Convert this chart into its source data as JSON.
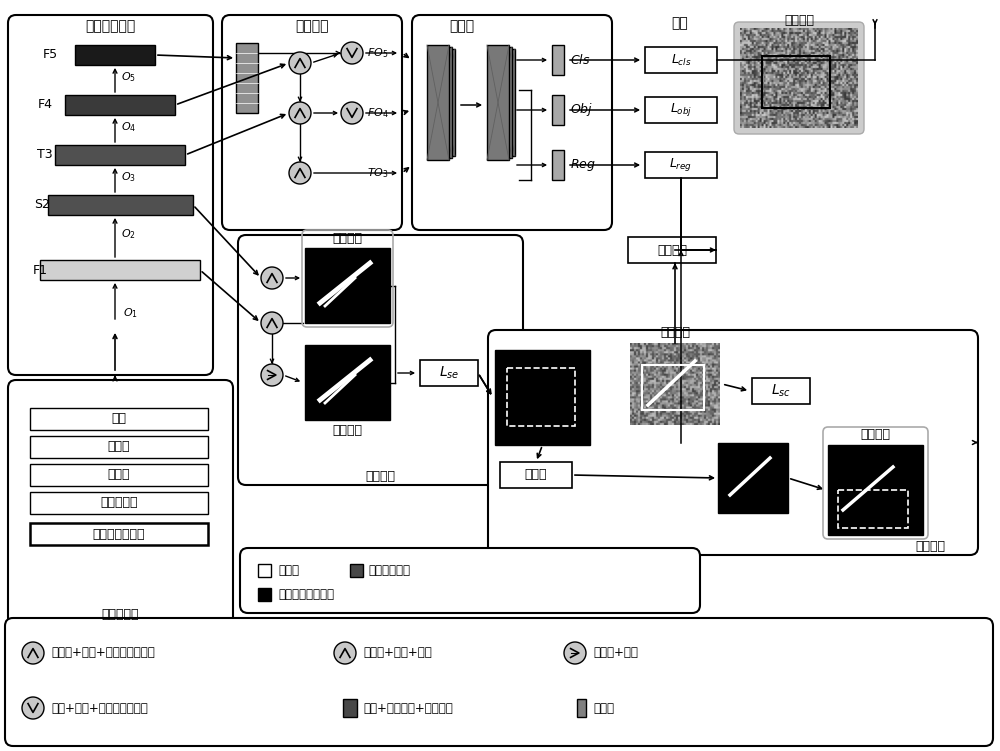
{
  "bg_color": "#ffffff",
  "light_gray": "#c8c8c8",
  "mid_gray": "#808080",
  "dark_gray": "#484848",
  "black": "#000000",
  "very_light_gray": "#e0e0e0",
  "backbone_label": "主干特征网络",
  "fusion_label": "特征融合",
  "head_label": "定位头",
  "pred_label": "预测",
  "final_label": "最终结果",
  "label_assign": "标签分配",
  "seg_section_label": "语义分割",
  "comp_section_label": "语义补全",
  "input_label": "多特征输入",
  "watershed_label": "分水岭",
  "seg_label_text": "分割标签",
  "seg_result_text": "分割结果",
  "coord_label_text": "坐标标签",
  "comp_result_text": "补全结果",
  "features": [
    "强度",
    "阻尼比",
    "散射熵",
    "各向异性度",
    "平均极化散射角"
  ],
  "legend_items": [
    "聚焦层",
    "跨阶段局部层",
    "空间金字塔池化层"
  ],
  "bottom_legend": [
    [
      "上采样+拼接+跨阶段局部模块",
      "反卷积+拼接+卷积",
      "反卷积+卷积"
    ],
    [
      "卷积+拼接+跨阶段局部模块",
      "卷积+批归一化+激活函数",
      "卷积层"
    ]
  ]
}
